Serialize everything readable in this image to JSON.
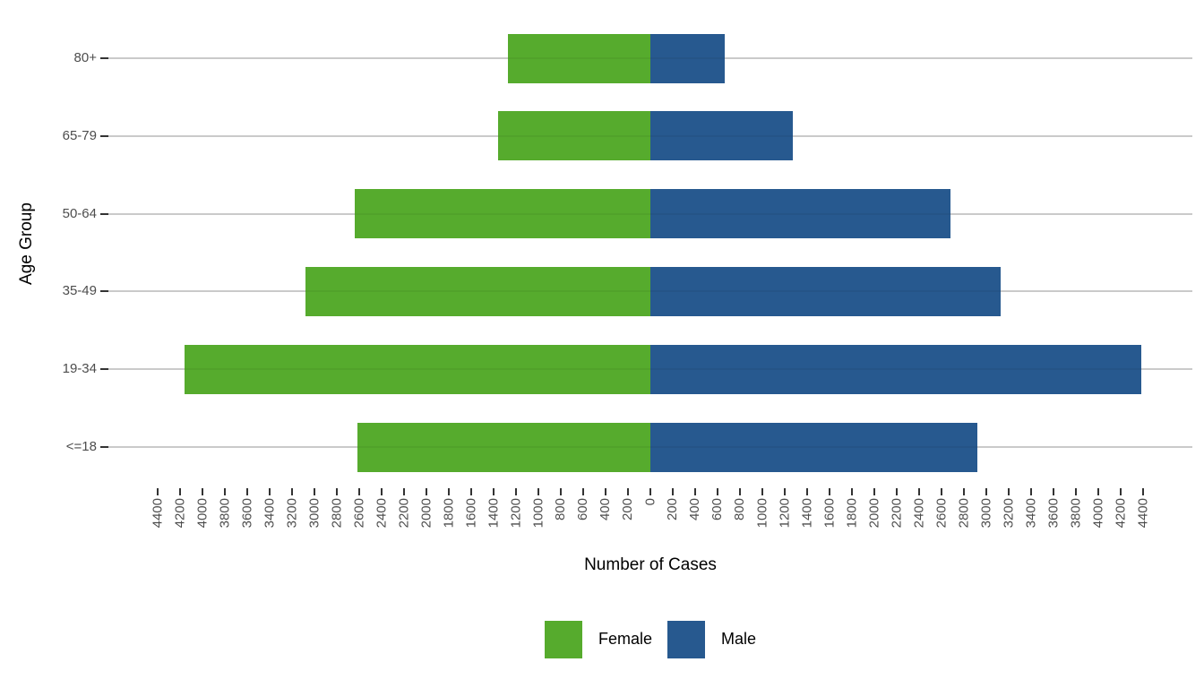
{
  "chart_data": {
    "type": "bar",
    "subtype": "population_pyramid",
    "title": "",
    "xlabel": "Number of Cases",
    "ylabel": "Age Group",
    "categories": [
      "80+",
      "65-79",
      "50-64",
      "35-49",
      "19-34",
      "<=18"
    ],
    "series": [
      {
        "name": "Female",
        "side": "left",
        "color": "#56AB2D",
        "values": [
          1270,
          1360,
          2640,
          3080,
          4160,
          2620
        ]
      },
      {
        "name": "Male",
        "side": "right",
        "color": "#27598F",
        "values": [
          660,
          1270,
          2680,
          3130,
          4380,
          2920
        ]
      }
    ],
    "x_axis": {
      "min": -4400,
      "max": 4400,
      "tick_step": 200,
      "labels_show_absolute_value": true,
      "tick_label_rotation_deg": 90
    },
    "y_axis": {
      "tick_labels": [
        "80+",
        "65-79",
        "50-64",
        "35-49",
        "19-34",
        "<=18"
      ]
    },
    "legend": {
      "position": "bottom",
      "entries": [
        "Female",
        "Male"
      ]
    },
    "grid": {
      "horizontal_only": true,
      "color": "#d5d5d5"
    },
    "text_colors": {
      "tick_labels": "#4d4d4d",
      "axis_titles": "#000000"
    }
  }
}
